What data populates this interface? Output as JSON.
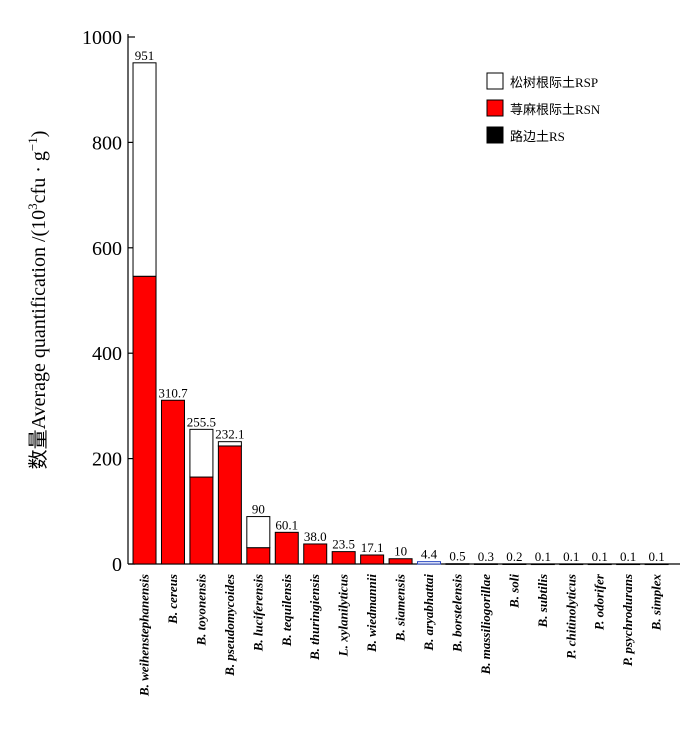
{
  "chart_data": {
    "type": "bar",
    "stacked": true,
    "ylabel": "数量Average quantification /(10³cfu · g⁻¹)",
    "ylabel_parts": {
      "prefix": "数量Average quantification /(10",
      "sup1": "3",
      "middle": "cfu · g",
      "sup2": "−1",
      "suffix": ")"
    },
    "ylim": [
      0,
      1000
    ],
    "yticks": [
      "0",
      "200",
      "400",
      "600",
      "800",
      "1000"
    ],
    "ytick_values": [
      0,
      200,
      400,
      600,
      800,
      1000
    ],
    "grid": false,
    "legend_position": "top-right",
    "categories": [
      "B. weihenstephanensis",
      "B. cereus",
      "B. toyonensis",
      "B. pseudomycoides",
      "B. luciferensis",
      "B. tequilensis",
      "B. thuringiensis",
      "L. xylanilyticus",
      "B. wiedmannii",
      "B. siamensis",
      "B. aryabhattai",
      "B. borstelensis",
      "B. massiliogorillae",
      "B. soli",
      "B. subtilis",
      "P. chitinolyticus",
      "P. odorifer",
      "P. psychrodurans",
      "B. simplex"
    ],
    "series": [
      {
        "name": "荨麻根际土RSN",
        "color": "#ff0000",
        "values": [
          546,
          310.7,
          165,
          224,
          31,
          60.1,
          38.0,
          23.5,
          17.1,
          10,
          0,
          0,
          0,
          0,
          0,
          0,
          0,
          0,
          0
        ]
      },
      {
        "name": "松树根际土RSP",
        "color": "#ffffff",
        "values": [
          405,
          0,
          90.5,
          8.1,
          59,
          0,
          0,
          0,
          0,
          0,
          4.4,
          0.5,
          0.3,
          0.2,
          0.1,
          0.1,
          0.1,
          0.1,
          0.1
        ]
      },
      {
        "name": "路边土RS",
        "color": "#000000",
        "values": [
          0,
          0,
          0,
          0,
          0,
          0,
          0,
          0,
          0,
          0,
          0,
          0,
          0,
          0,
          0,
          0,
          0,
          0,
          0
        ]
      }
    ],
    "totals": [
      951,
      310.7,
      255.5,
      232.1,
      90,
      60.1,
      38.0,
      23.5,
      17.1,
      10,
      4.4,
      0.5,
      0.3,
      0.2,
      0.1,
      0.1,
      0.1,
      0.1,
      0.1
    ],
    "total_labels": [
      "951",
      "310.7",
      "255.5",
      "232.1",
      "90",
      "60.1",
      "38.0",
      "23.5",
      "17.1",
      "10",
      "4.4",
      "0.5",
      "0.3",
      "0.2",
      "0.1",
      "0.1",
      "0.1",
      "0.1",
      "0.1"
    ],
    "legend_order": [
      "松树根际土RSP",
      "荨麻根际土RSN",
      "路边土RS"
    ]
  }
}
